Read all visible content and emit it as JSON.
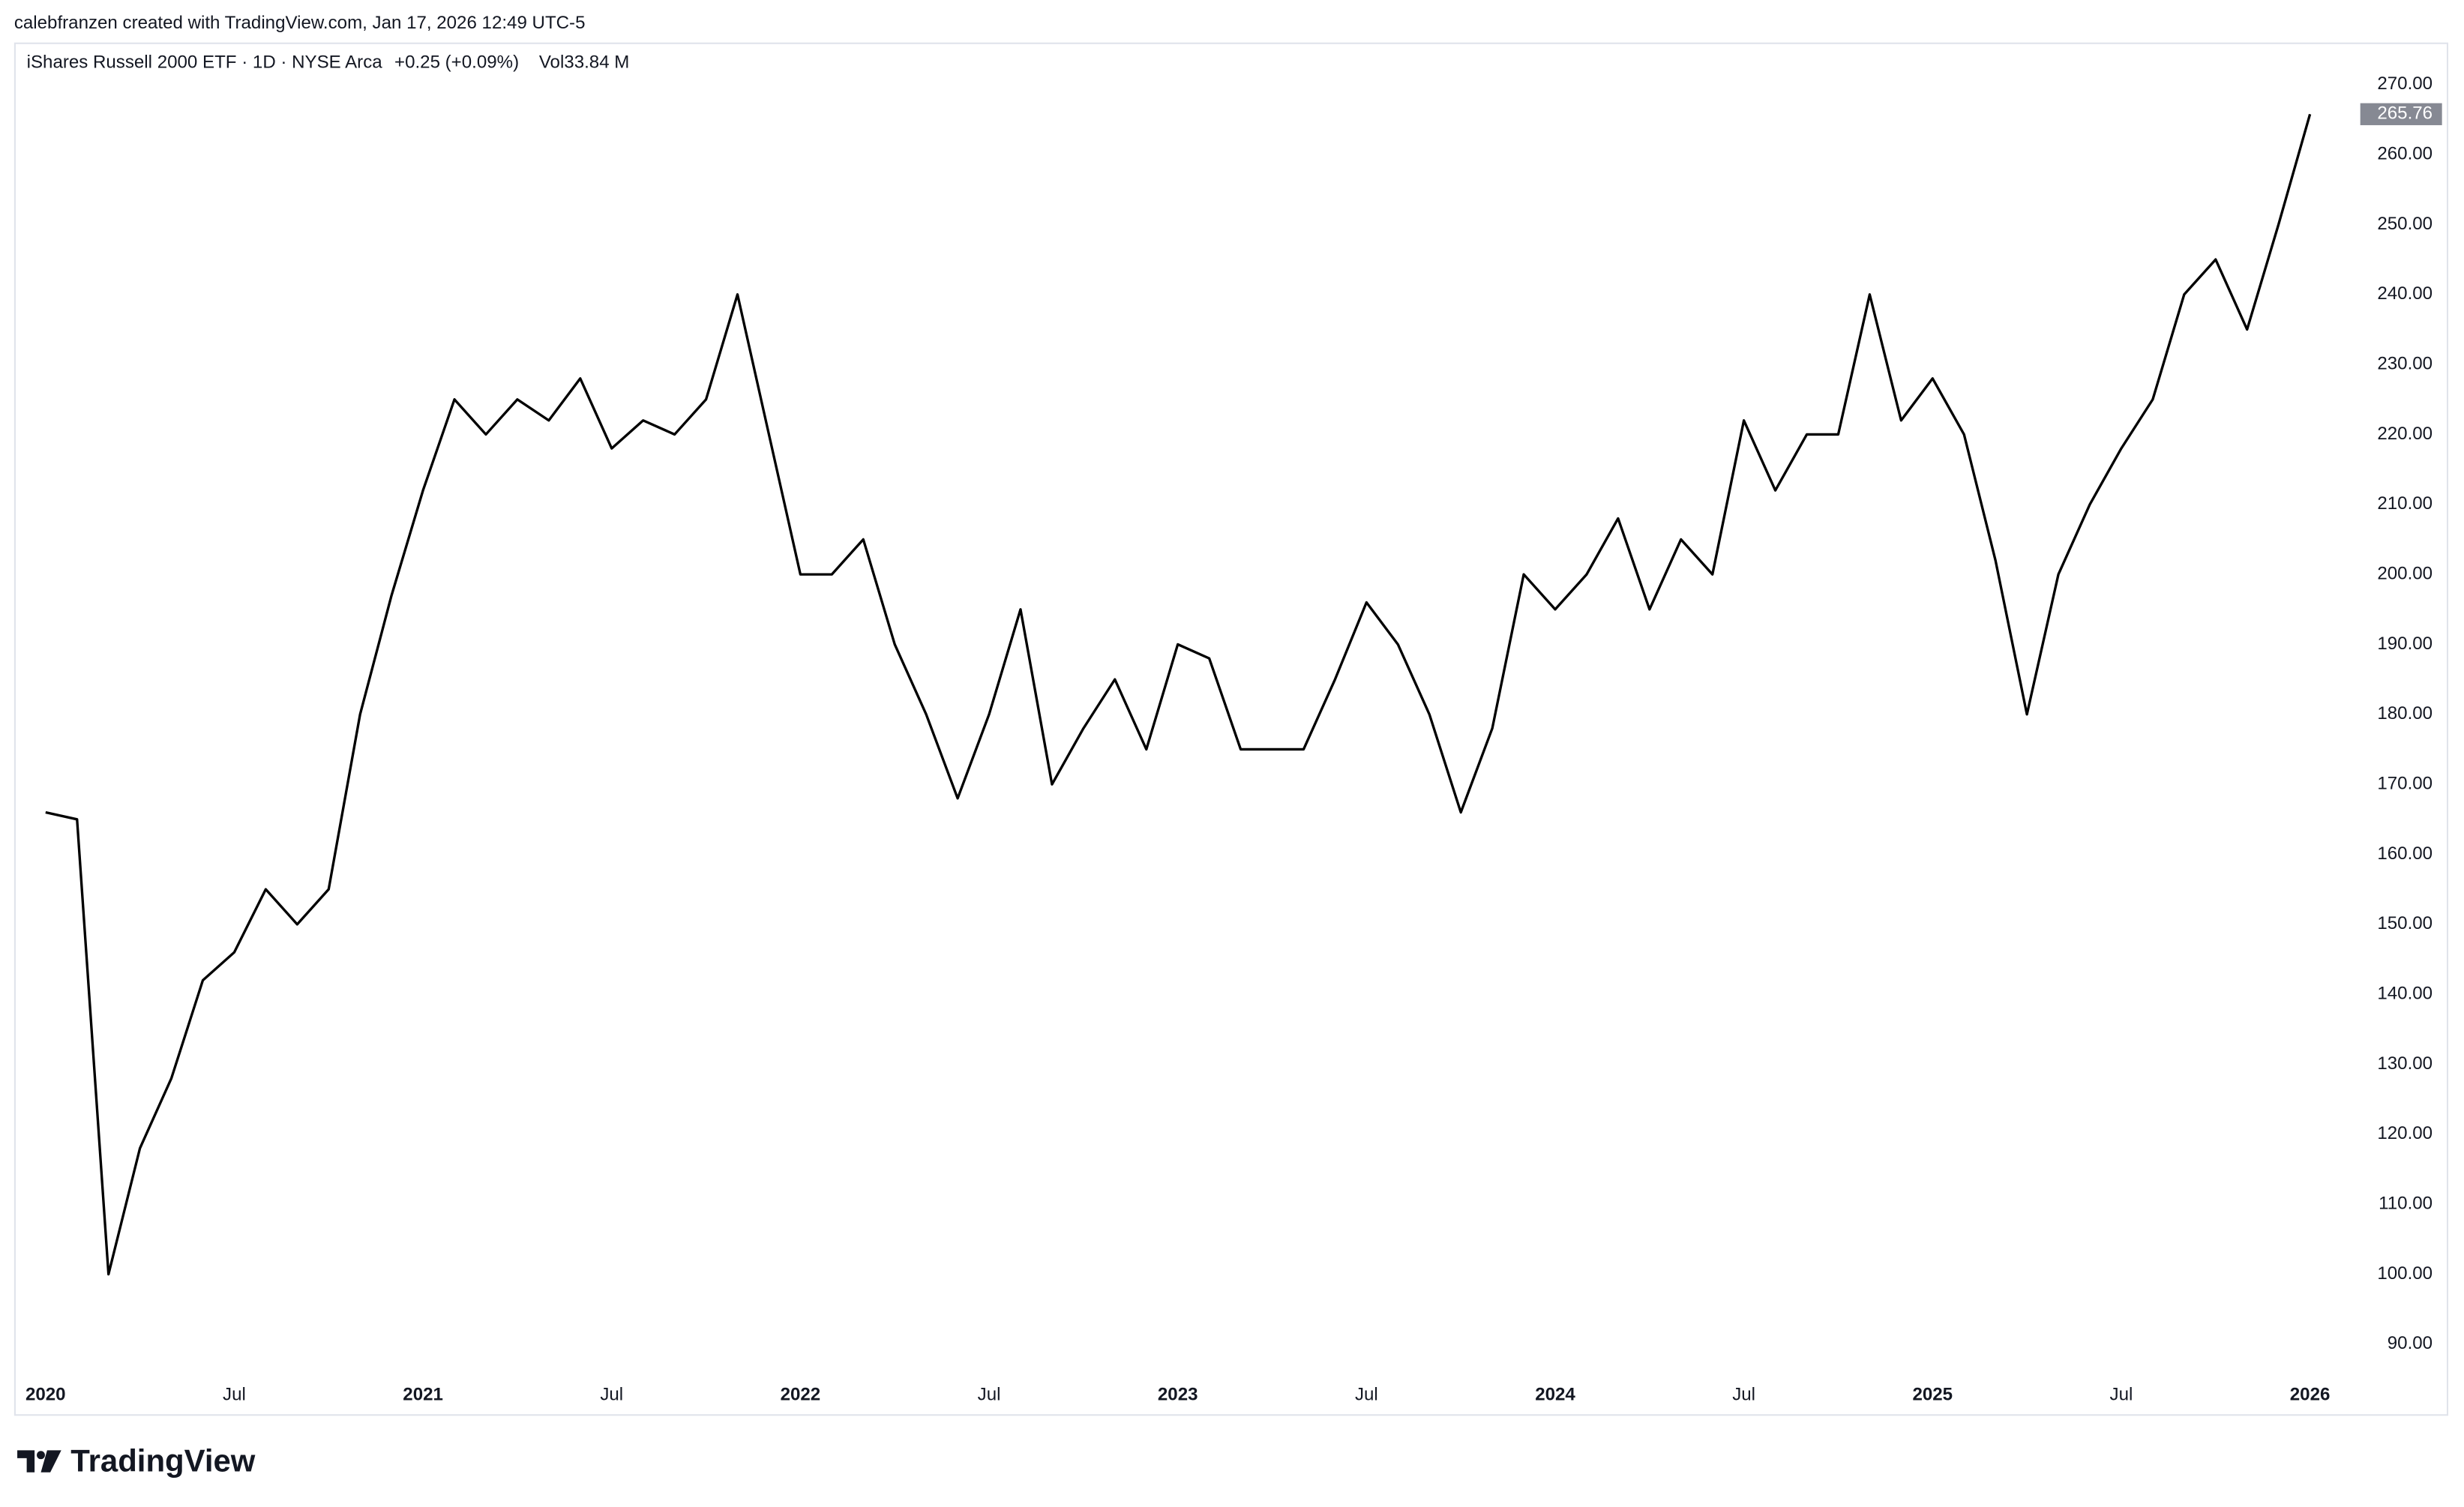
{
  "header": {
    "credit": "calebfranzen created with TradingView.com, Jan 17, 2026 12:49 UTC-5"
  },
  "footer": {
    "brand": "TradingView"
  },
  "chart_data": {
    "type": "line",
    "title": "iShares Russell 2000 ETF · 1D · NYSE Arca",
    "change": "+0.25 (+0.09%)",
    "volume": "Vol33.84 M",
    "color": "#000000",
    "x": [
      "2020-01",
      "2020-02",
      "2020-03",
      "2020-04",
      "2020-05",
      "2020-06",
      "2020-07",
      "2020-08",
      "2020-09",
      "2020-10",
      "2020-11",
      "2020-12",
      "2021-01",
      "2021-02",
      "2021-03",
      "2021-04",
      "2021-05",
      "2021-06",
      "2021-07",
      "2021-08",
      "2021-09",
      "2021-10",
      "2021-11",
      "2021-12",
      "2022-01",
      "2022-02",
      "2022-03",
      "2022-04",
      "2022-05",
      "2022-06",
      "2022-07",
      "2022-08",
      "2022-09",
      "2022-10",
      "2022-11",
      "2022-12",
      "2023-01",
      "2023-02",
      "2023-03",
      "2023-04",
      "2023-05",
      "2023-06",
      "2023-07",
      "2023-08",
      "2023-09",
      "2023-10",
      "2023-11",
      "2023-12",
      "2024-01",
      "2024-02",
      "2024-03",
      "2024-04",
      "2024-05",
      "2024-06",
      "2024-07",
      "2024-08",
      "2024-09",
      "2024-10",
      "2024-11",
      "2024-12",
      "2025-01",
      "2025-02",
      "2025-03",
      "2025-04",
      "2025-05",
      "2025-06",
      "2025-07",
      "2025-08",
      "2025-09",
      "2025-10",
      "2025-11",
      "2025-12",
      "2026-01"
    ],
    "values": [
      166,
      165,
      100,
      118,
      128,
      142,
      146,
      155,
      150,
      155,
      180,
      197,
      212,
      225,
      220,
      225,
      222,
      228,
      218,
      222,
      220,
      225,
      240,
      220,
      200,
      200,
      205,
      190,
      180,
      168,
      180,
      195,
      170,
      178,
      185,
      175,
      190,
      188,
      175,
      175,
      175,
      185,
      196,
      190,
      180,
      166,
      178,
      200,
      195,
      200,
      208,
      195,
      205,
      200,
      222,
      212,
      220,
      220,
      240,
      222,
      228,
      220,
      202,
      180,
      200,
      210,
      218,
      225,
      240,
      245,
      235,
      250,
      265.76
    ],
    "xlim": [
      "2019-12",
      "2026-02"
    ],
    "xticks": [
      {
        "value": "2020-01",
        "label": "2020"
      },
      {
        "value": "2020-07",
        "label": "Jul"
      },
      {
        "value": "2021-01",
        "label": "2021"
      },
      {
        "value": "2021-07",
        "label": "Jul"
      },
      {
        "value": "2022-01",
        "label": "2022"
      },
      {
        "value": "2022-07",
        "label": "Jul"
      },
      {
        "value": "2023-01",
        "label": "2023"
      },
      {
        "value": "2023-07",
        "label": "Jul"
      },
      {
        "value": "2024-01",
        "label": "2024"
      },
      {
        "value": "2024-07",
        "label": "Jul"
      },
      {
        "value": "2025-01",
        "label": "2025"
      },
      {
        "value": "2025-07",
        "label": "Jul"
      },
      {
        "value": "2026-01",
        "label": "2026"
      }
    ],
    "ylim": [
      80,
      276
    ],
    "yticks": [
      {
        "value": 90,
        "label": "90.00"
      },
      {
        "value": 100,
        "label": "100.00"
      },
      {
        "value": 110,
        "label": "110.00"
      },
      {
        "value": 120,
        "label": "120.00"
      },
      {
        "value": 130,
        "label": "130.00"
      },
      {
        "value": 140,
        "label": "140.00"
      },
      {
        "value": 150,
        "label": "150.00"
      },
      {
        "value": 160,
        "label": "160.00"
      },
      {
        "value": 170,
        "label": "170.00"
      },
      {
        "value": 180,
        "label": "180.00"
      },
      {
        "value": 190,
        "label": "190.00"
      },
      {
        "value": 200,
        "label": "200.00"
      },
      {
        "value": 210,
        "label": "210.00"
      },
      {
        "value": 220,
        "label": "220.00"
      },
      {
        "value": 230,
        "label": "230.00"
      },
      {
        "value": 240,
        "label": "240.00"
      },
      {
        "value": 250,
        "label": "250.00"
      },
      {
        "value": 260,
        "label": "260.00"
      },
      {
        "value": 270,
        "label": "270.00"
      }
    ]
  }
}
